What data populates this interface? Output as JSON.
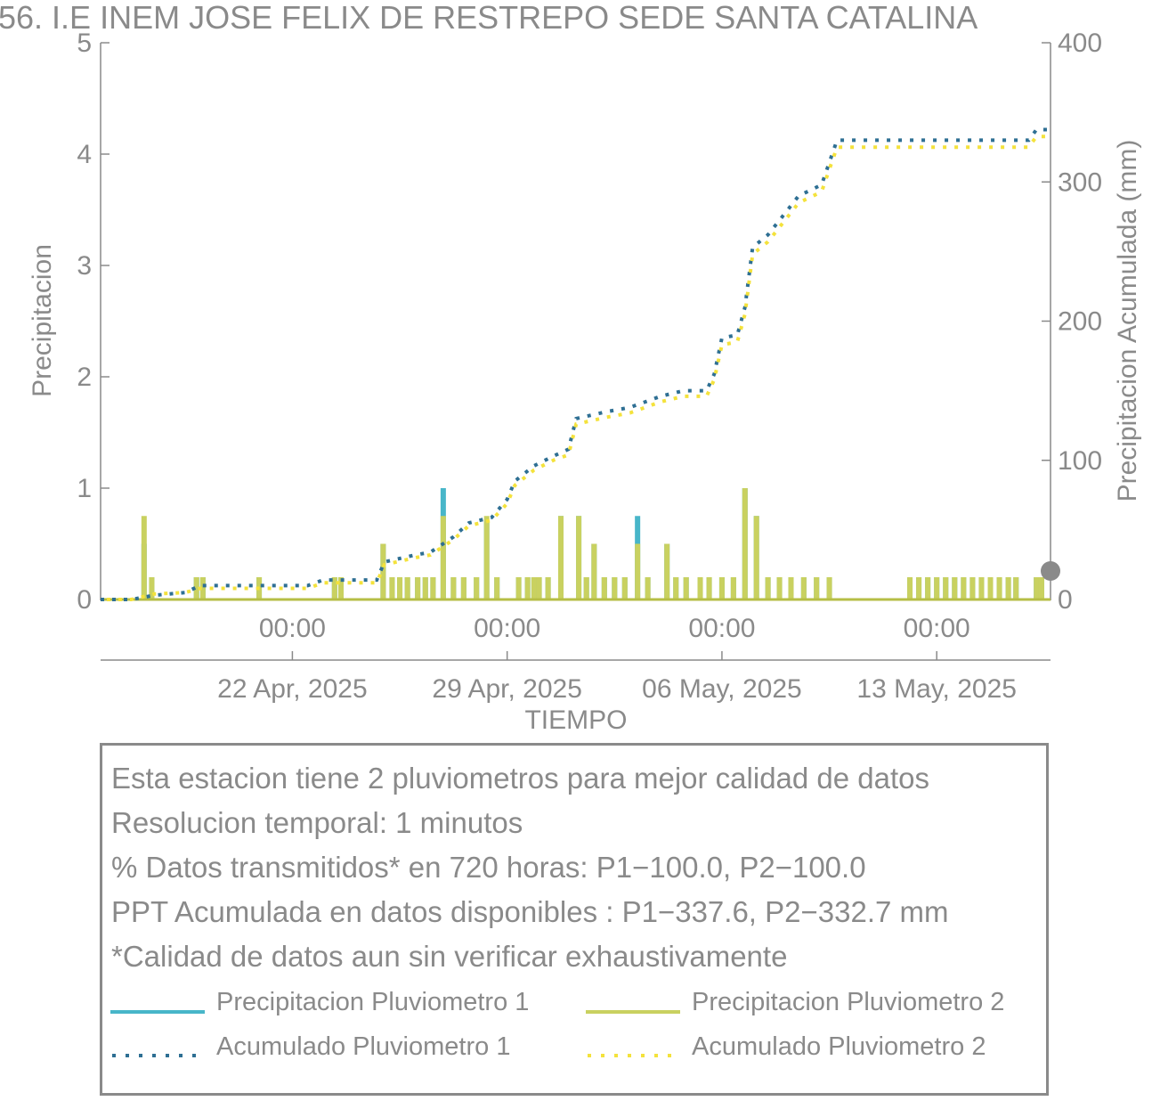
{
  "colors": {
    "p1": "#48b6c9",
    "p2": "#c9d160",
    "acc1": "#2e6f93",
    "acc2": "#f4e23c",
    "axis": "#8a8a8a",
    "marker": "#8a8a8a"
  },
  "chart_data": {
    "type": "bar+line",
    "title": "56. I.E INEM JOSE FELIX DE RESTREPO SEDE SANTA CATALINA",
    "xlabel": "TIEMPO",
    "ylabel_left": "Precipitacion",
    "ylabel_right": "Precipitacion Acumulada (mm)",
    "ylim_left": [
      0,
      5
    ],
    "ylim_right": [
      0,
      400
    ],
    "yticks_left": [
      "0",
      "1",
      "2",
      "3",
      "4",
      "5"
    ],
    "yticks_right": [
      "0",
      "100",
      "200",
      "300",
      "400"
    ],
    "xlim": [
      "2025-04-15T18:00",
      "2025-05-16T17:00"
    ],
    "xticks": [
      {
        "x": "2025-04-22T00:00",
        "time": "00:00",
        "date": "22 Apr, 2025"
      },
      {
        "x": "2025-04-29T00:00",
        "time": "00:00",
        "date": "29 Apr, 2025"
      },
      {
        "x": "2025-05-06T00:00",
        "time": "00:00",
        "date": "06 May, 2025"
      },
      {
        "x": "2025-05-13T00:00",
        "time": "00:00",
        "date": "13 May, 2025"
      }
    ],
    "grid": false,
    "precip_p1": [
      {
        "x": "2025-04-17T04:00",
        "y": 0.5
      },
      {
        "x": "2025-04-17T10:00",
        "y": 0.2
      },
      {
        "x": "2025-04-18T21:00",
        "y": 0.2
      },
      {
        "x": "2025-04-19T02:00",
        "y": 0.2
      },
      {
        "x": "2025-04-20T22:00",
        "y": 0.2
      },
      {
        "x": "2025-04-23T09:00",
        "y": 0.2
      },
      {
        "x": "2025-04-23T14:00",
        "y": 0.2
      },
      {
        "x": "2025-04-24T23:00",
        "y": 0.5
      },
      {
        "x": "2025-04-25T06:00",
        "y": 0.2
      },
      {
        "x": "2025-04-25T12:00",
        "y": 0.2
      },
      {
        "x": "2025-04-25T18:00",
        "y": 0.2
      },
      {
        "x": "2025-04-26T02:00",
        "y": 0.2
      },
      {
        "x": "2025-04-26T08:00",
        "y": 0.2
      },
      {
        "x": "2025-04-26T14:00",
        "y": 0.2
      },
      {
        "x": "2025-04-26T22:00",
        "y": 1.0
      },
      {
        "x": "2025-04-27T06:00",
        "y": 0.2
      },
      {
        "x": "2025-04-27T14:00",
        "y": 0.2
      },
      {
        "x": "2025-04-28T00:00",
        "y": 0.2
      },
      {
        "x": "2025-04-28T08:00",
        "y": 0.7
      },
      {
        "x": "2025-04-28T16:00",
        "y": 0.2
      },
      {
        "x": "2025-04-29T09:00",
        "y": 0.2
      },
      {
        "x": "2025-04-29T16:00",
        "y": 0.2
      },
      {
        "x": "2025-04-29T21:00",
        "y": 0.2
      },
      {
        "x": "2025-04-30T01:00",
        "y": 0.2
      },
      {
        "x": "2025-04-30T08:00",
        "y": 0.2
      },
      {
        "x": "2025-04-30T18:00",
        "y": 0.75
      },
      {
        "x": "2025-05-01T08:00",
        "y": 0.75
      },
      {
        "x": "2025-05-01T14:00",
        "y": 0.2
      },
      {
        "x": "2025-05-01T20:00",
        "y": 0.5
      },
      {
        "x": "2025-05-02T04:00",
        "y": 0.2
      },
      {
        "x": "2025-05-02T12:00",
        "y": 0.2
      },
      {
        "x": "2025-05-02T20:00",
        "y": 0.2
      },
      {
        "x": "2025-05-03T06:00",
        "y": 0.75
      },
      {
        "x": "2025-05-03T14:00",
        "y": 0.2
      },
      {
        "x": "2025-05-04T05:00",
        "y": 0.5
      },
      {
        "x": "2025-05-04T12:00",
        "y": 0.2
      },
      {
        "x": "2025-05-04T20:00",
        "y": 0.2
      },
      {
        "x": "2025-05-05T07:00",
        "y": 0.2
      },
      {
        "x": "2025-05-05T14:00",
        "y": 0.2
      },
      {
        "x": "2025-05-06T00:00",
        "y": 0.2
      },
      {
        "x": "2025-05-06T09:00",
        "y": 0.2
      },
      {
        "x": "2025-05-06T18:00",
        "y": 1.0
      },
      {
        "x": "2025-05-07T03:00",
        "y": 0.75
      },
      {
        "x": "2025-05-07T12:00",
        "y": 0.2
      },
      {
        "x": "2025-05-07T21:00",
        "y": 0.2
      },
      {
        "x": "2025-05-08T06:00",
        "y": 0.2
      },
      {
        "x": "2025-05-08T16:00",
        "y": 0.2
      },
      {
        "x": "2025-05-09T02:00",
        "y": 0.2
      },
      {
        "x": "2025-05-09T12:00",
        "y": 0.2
      },
      {
        "x": "2025-05-12T03:00",
        "y": 0.2
      },
      {
        "x": "2025-05-12T10:00",
        "y": 0.2
      },
      {
        "x": "2025-05-12T17:00",
        "y": 0.2
      },
      {
        "x": "2025-05-13T00:00",
        "y": 0.2
      },
      {
        "x": "2025-05-13T07:00",
        "y": 0.2
      },
      {
        "x": "2025-05-13T14:00",
        "y": 0.2
      },
      {
        "x": "2025-05-13T21:00",
        "y": 0.2
      },
      {
        "x": "2025-05-14T04:00",
        "y": 0.2
      },
      {
        "x": "2025-05-14T11:00",
        "y": 0.2
      },
      {
        "x": "2025-05-14T18:00",
        "y": 0.2
      },
      {
        "x": "2025-05-15T01:00",
        "y": 0.2
      },
      {
        "x": "2025-05-15T08:00",
        "y": 0.2
      },
      {
        "x": "2025-05-15T14:00",
        "y": 0.2
      },
      {
        "x": "2025-05-16T06:00",
        "y": 0.2
      },
      {
        "x": "2025-05-16T10:00",
        "y": 0.2
      }
    ],
    "precip_p2": [
      {
        "x": "2025-04-17T04:00",
        "y": 0.75
      },
      {
        "x": "2025-04-17T10:00",
        "y": 0.2
      },
      {
        "x": "2025-04-18T21:00",
        "y": 0.2
      },
      {
        "x": "2025-04-19T02:00",
        "y": 0.2
      },
      {
        "x": "2025-04-20T22:00",
        "y": 0.2
      },
      {
        "x": "2025-04-23T09:00",
        "y": 0.2
      },
      {
        "x": "2025-04-23T14:00",
        "y": 0.2
      },
      {
        "x": "2025-04-24T23:00",
        "y": 0.5
      },
      {
        "x": "2025-04-25T06:00",
        "y": 0.2
      },
      {
        "x": "2025-04-25T12:00",
        "y": 0.2
      },
      {
        "x": "2025-04-25T18:00",
        "y": 0.2
      },
      {
        "x": "2025-04-26T02:00",
        "y": 0.2
      },
      {
        "x": "2025-04-26T08:00",
        "y": 0.2
      },
      {
        "x": "2025-04-26T14:00",
        "y": 0.2
      },
      {
        "x": "2025-04-26T22:00",
        "y": 0.75
      },
      {
        "x": "2025-04-27T06:00",
        "y": 0.2
      },
      {
        "x": "2025-04-27T14:00",
        "y": 0.2
      },
      {
        "x": "2025-04-28T00:00",
        "y": 0.2
      },
      {
        "x": "2025-04-28T08:00",
        "y": 0.75
      },
      {
        "x": "2025-04-28T16:00",
        "y": 0.2
      },
      {
        "x": "2025-04-29T09:00",
        "y": 0.2
      },
      {
        "x": "2025-04-29T16:00",
        "y": 0.2
      },
      {
        "x": "2025-04-29T21:00",
        "y": 0.2
      },
      {
        "x": "2025-04-30T01:00",
        "y": 0.2
      },
      {
        "x": "2025-04-30T08:00",
        "y": 0.2
      },
      {
        "x": "2025-04-30T18:00",
        "y": 0.75
      },
      {
        "x": "2025-05-01T08:00",
        "y": 0.75
      },
      {
        "x": "2025-05-01T14:00",
        "y": 0.2
      },
      {
        "x": "2025-05-01T20:00",
        "y": 0.5
      },
      {
        "x": "2025-05-02T04:00",
        "y": 0.2
      },
      {
        "x": "2025-05-02T12:00",
        "y": 0.2
      },
      {
        "x": "2025-05-02T20:00",
        "y": 0.2
      },
      {
        "x": "2025-05-03T06:00",
        "y": 0.5
      },
      {
        "x": "2025-05-03T14:00",
        "y": 0.2
      },
      {
        "x": "2025-05-04T05:00",
        "y": 0.5
      },
      {
        "x": "2025-05-04T12:00",
        "y": 0.2
      },
      {
        "x": "2025-05-04T20:00",
        "y": 0.2
      },
      {
        "x": "2025-05-05T07:00",
        "y": 0.2
      },
      {
        "x": "2025-05-05T14:00",
        "y": 0.2
      },
      {
        "x": "2025-05-06T00:00",
        "y": 0.2
      },
      {
        "x": "2025-05-06T09:00",
        "y": 0.2
      },
      {
        "x": "2025-05-06T18:00",
        "y": 1.0
      },
      {
        "x": "2025-05-07T03:00",
        "y": 0.75
      },
      {
        "x": "2025-05-07T12:00",
        "y": 0.2
      },
      {
        "x": "2025-05-07T21:00",
        "y": 0.2
      },
      {
        "x": "2025-05-08T06:00",
        "y": 0.2
      },
      {
        "x": "2025-05-08T16:00",
        "y": 0.2
      },
      {
        "x": "2025-05-09T02:00",
        "y": 0.2
      },
      {
        "x": "2025-05-09T12:00",
        "y": 0.2
      },
      {
        "x": "2025-05-12T03:00",
        "y": 0.2
      },
      {
        "x": "2025-05-12T10:00",
        "y": 0.2
      },
      {
        "x": "2025-05-12T17:00",
        "y": 0.2
      },
      {
        "x": "2025-05-13T00:00",
        "y": 0.2
      },
      {
        "x": "2025-05-13T07:00",
        "y": 0.2
      },
      {
        "x": "2025-05-13T14:00",
        "y": 0.2
      },
      {
        "x": "2025-05-13T21:00",
        "y": 0.2
      },
      {
        "x": "2025-05-14T04:00",
        "y": 0.2
      },
      {
        "x": "2025-05-14T11:00",
        "y": 0.2
      },
      {
        "x": "2025-05-14T18:00",
        "y": 0.2
      },
      {
        "x": "2025-05-15T01:00",
        "y": 0.2
      },
      {
        "x": "2025-05-15T08:00",
        "y": 0.2
      },
      {
        "x": "2025-05-15T14:00",
        "y": 0.2
      },
      {
        "x": "2025-05-16T06:00",
        "y": 0.2
      },
      {
        "x": "2025-05-16T10:00",
        "y": 0.2
      }
    ],
    "accum_p1": [
      {
        "x": "2025-04-15T18:00",
        "y": 0
      },
      {
        "x": "2025-04-16T18:00",
        "y": 0
      },
      {
        "x": "2025-04-17T12:00",
        "y": 3
      },
      {
        "x": "2025-04-18T12:00",
        "y": 5
      },
      {
        "x": "2025-04-19T00:00",
        "y": 10
      },
      {
        "x": "2025-04-20T12:00",
        "y": 10
      },
      {
        "x": "2025-04-21T12:00",
        "y": 10
      },
      {
        "x": "2025-04-22T12:00",
        "y": 10
      },
      {
        "x": "2025-04-23T00:00",
        "y": 14
      },
      {
        "x": "2025-04-24T18:00",
        "y": 14
      },
      {
        "x": "2025-04-25T00:00",
        "y": 27
      },
      {
        "x": "2025-04-26T00:00",
        "y": 32
      },
      {
        "x": "2025-04-26T12:00",
        "y": 34
      },
      {
        "x": "2025-04-27T06:00",
        "y": 45
      },
      {
        "x": "2025-04-27T18:00",
        "y": 55
      },
      {
        "x": "2025-04-28T12:00",
        "y": 59
      },
      {
        "x": "2025-04-29T00:00",
        "y": 72
      },
      {
        "x": "2025-04-29T06:00",
        "y": 85
      },
      {
        "x": "2025-04-29T21:00",
        "y": 96
      },
      {
        "x": "2025-04-30T12:00",
        "y": 103
      },
      {
        "x": "2025-05-01T00:00",
        "y": 108
      },
      {
        "x": "2025-05-01T06:00",
        "y": 130
      },
      {
        "x": "2025-05-02T06:00",
        "y": 135
      },
      {
        "x": "2025-05-03T00:00",
        "y": 138
      },
      {
        "x": "2025-05-04T00:00",
        "y": 146
      },
      {
        "x": "2025-05-04T18:00",
        "y": 150
      },
      {
        "x": "2025-05-05T12:00",
        "y": 150
      },
      {
        "x": "2025-05-05T18:00",
        "y": 162
      },
      {
        "x": "2025-05-06T00:00",
        "y": 188
      },
      {
        "x": "2025-05-06T12:00",
        "y": 190
      },
      {
        "x": "2025-05-06T18:00",
        "y": 210
      },
      {
        "x": "2025-05-07T00:00",
        "y": 253
      },
      {
        "x": "2025-05-07T12:00",
        "y": 262
      },
      {
        "x": "2025-05-08T00:00",
        "y": 276
      },
      {
        "x": "2025-05-08T12:00",
        "y": 290
      },
      {
        "x": "2025-05-09T06:00",
        "y": 298
      },
      {
        "x": "2025-05-09T18:00",
        "y": 330
      },
      {
        "x": "2025-05-10T12:00",
        "y": 330
      },
      {
        "x": "2025-05-12T12:00",
        "y": 330
      },
      {
        "x": "2025-05-14T12:00",
        "y": 330
      },
      {
        "x": "2025-05-16T00:00",
        "y": 330
      },
      {
        "x": "2025-05-16T06:00",
        "y": 337.6
      },
      {
        "x": "2025-05-16T17:00",
        "y": 337.6
      }
    ],
    "accum_p2": [
      {
        "x": "2025-04-15T18:00",
        "y": 0
      },
      {
        "x": "2025-04-16T18:00",
        "y": 0
      },
      {
        "x": "2025-04-17T12:00",
        "y": 4
      },
      {
        "x": "2025-04-18T12:00",
        "y": 5
      },
      {
        "x": "2025-04-19T00:00",
        "y": 8
      },
      {
        "x": "2025-04-20T12:00",
        "y": 8
      },
      {
        "x": "2025-04-21T12:00",
        "y": 8
      },
      {
        "x": "2025-04-22T12:00",
        "y": 8
      },
      {
        "x": "2025-04-23T00:00",
        "y": 12
      },
      {
        "x": "2025-04-24T18:00",
        "y": 12
      },
      {
        "x": "2025-04-25T00:00",
        "y": 25
      },
      {
        "x": "2025-04-26T00:00",
        "y": 30
      },
      {
        "x": "2025-04-26T12:00",
        "y": 32
      },
      {
        "x": "2025-04-27T06:00",
        "y": 43
      },
      {
        "x": "2025-04-27T18:00",
        "y": 53
      },
      {
        "x": "2025-04-28T12:00",
        "y": 57
      },
      {
        "x": "2025-04-29T00:00",
        "y": 69
      },
      {
        "x": "2025-04-29T06:00",
        "y": 82
      },
      {
        "x": "2025-04-29T21:00",
        "y": 93
      },
      {
        "x": "2025-04-30T12:00",
        "y": 100
      },
      {
        "x": "2025-05-01T00:00",
        "y": 104
      },
      {
        "x": "2025-05-01T06:00",
        "y": 126
      },
      {
        "x": "2025-05-02T06:00",
        "y": 131
      },
      {
        "x": "2025-05-03T00:00",
        "y": 134
      },
      {
        "x": "2025-05-04T00:00",
        "y": 142
      },
      {
        "x": "2025-05-04T18:00",
        "y": 146
      },
      {
        "x": "2025-05-05T12:00",
        "y": 146
      },
      {
        "x": "2025-05-05T18:00",
        "y": 158
      },
      {
        "x": "2025-05-06T00:00",
        "y": 183
      },
      {
        "x": "2025-05-06T12:00",
        "y": 185
      },
      {
        "x": "2025-05-06T18:00",
        "y": 205
      },
      {
        "x": "2025-05-07T00:00",
        "y": 248
      },
      {
        "x": "2025-05-07T12:00",
        "y": 257
      },
      {
        "x": "2025-05-08T00:00",
        "y": 271
      },
      {
        "x": "2025-05-08T12:00",
        "y": 285
      },
      {
        "x": "2025-05-09T06:00",
        "y": 293
      },
      {
        "x": "2025-05-09T18:00",
        "y": 325
      },
      {
        "x": "2025-05-10T12:00",
        "y": 325
      },
      {
        "x": "2025-05-12T12:00",
        "y": 325
      },
      {
        "x": "2025-05-14T12:00",
        "y": 325
      },
      {
        "x": "2025-05-16T00:00",
        "y": 325
      },
      {
        "x": "2025-05-16T06:00",
        "y": 332.7
      },
      {
        "x": "2025-05-16T17:00",
        "y": 332.7
      }
    ]
  },
  "info": {
    "lines": [
      "Esta estacion tiene 2 pluviometros para mejor calidad de datos",
      "Resolucion temporal: 1 minutos",
      "% Datos transmitidos* en 720 horas: P1−100.0, P2−100.0",
      "PPT Acumulada en datos disponibles : P1−337.6, P2−332.7 mm",
      "*Calidad de datos aun sin verificar exhaustivamente"
    ]
  },
  "legend": {
    "p1_label": "Precipitacion Pluviometro 1",
    "p2_label": "Precipitacion Pluviometro 2",
    "acc1_label": "Acumulado Pluviometro 1",
    "acc2_label": "Acumulado Pluviometro 2"
  }
}
